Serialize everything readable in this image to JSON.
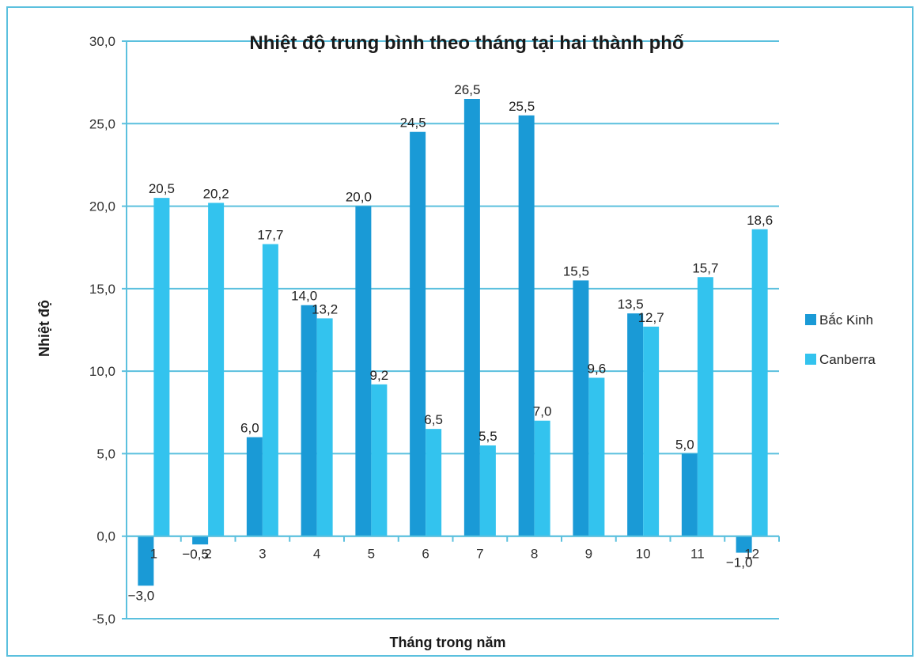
{
  "chart_data": {
    "type": "bar",
    "title": "Nhiệt độ trung bình theo tháng tại hai thành phố",
    "xlabel": "Tháng trong năm",
    "ylabel": "Nhiệt độ",
    "categories": [
      "1",
      "2",
      "3",
      "4",
      "5",
      "6",
      "7",
      "8",
      "9",
      "10",
      "11",
      "12"
    ],
    "series": [
      {
        "name": "Bắc Kinh",
        "color": "#1a9ad6",
        "values": [
          -3.0,
          -0.5,
          6.0,
          14.0,
          20.0,
          24.5,
          26.5,
          25.5,
          15.5,
          13.5,
          5.0,
          -1.0
        ],
        "labels": [
          "−3,0",
          "−0,5",
          "6,0",
          "14,0",
          "20,0",
          "24,5",
          "26,5",
          "25,5",
          "15,5",
          "13,5",
          "5,0",
          "−1,0"
        ]
      },
      {
        "name": "Canberra",
        "color": "#33c3ee",
        "values": [
          20.5,
          20.2,
          17.7,
          13.2,
          9.2,
          6.5,
          5.5,
          7.0,
          9.6,
          12.7,
          15.7,
          18.6
        ],
        "labels": [
          "20,5",
          "20,2",
          "17,7",
          "13,2",
          "9,2",
          "6,5",
          "5,5",
          "7,0",
          "9,6",
          "12,7",
          "15,7",
          "18,6"
        ]
      }
    ],
    "yticks": [
      -5,
      0,
      5,
      10,
      15,
      20,
      25,
      30
    ],
    "ytick_labels": [
      "-5,0",
      "0,0",
      "5,0",
      "10,0",
      "15,0",
      "20,0",
      "25,0",
      "30,0"
    ],
    "ylim": [
      -5,
      30
    ],
    "grid": true,
    "legend_position": "right",
    "colors": {
      "grid": "#5bc0de",
      "frame": "#5bc0de"
    }
  }
}
